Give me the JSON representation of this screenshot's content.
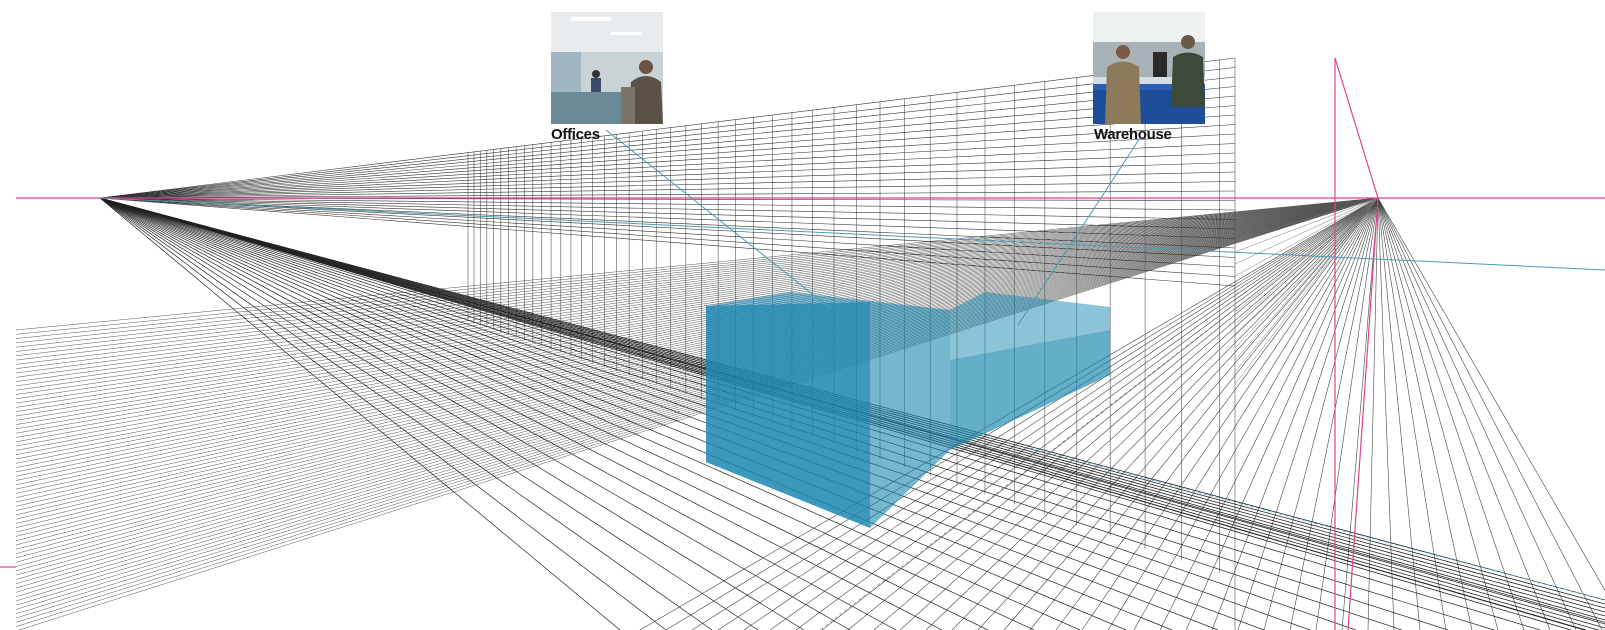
{
  "labels": {
    "offices": "Offices",
    "warehouse": "Warehouse"
  },
  "thumbnails": [
    {
      "name": "offices-photo",
      "label": "Offices"
    },
    {
      "name": "warehouse-photo",
      "label": "Warehouse"
    }
  ],
  "colors": {
    "horizon": "#e0428f",
    "guide": "#4a9bb5",
    "volume": "#1a87b0",
    "grid": "#3a3a3a",
    "text": "#111111"
  }
}
